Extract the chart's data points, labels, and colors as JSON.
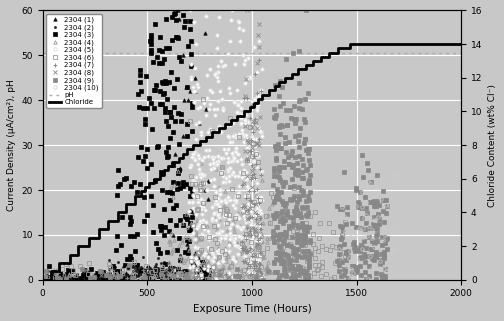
{
  "xlabel": "Exposure Time (Hours)",
  "ylabel_left": "Current Density (μA/cm²), pH",
  "ylabel_right": "Chloride Content (wt% Cl⁻)",
  "xlim": [
    0,
    2000
  ],
  "ylim_left": [
    0,
    60
  ],
  "ylim_right": [
    0,
    16
  ],
  "xticks": [
    0,
    500,
    1000,
    1500,
    2000
  ],
  "yticks_left": [
    0,
    10,
    20,
    30,
    40,
    50,
    60
  ],
  "yticks_right": [
    0,
    2,
    4,
    6,
    8,
    10,
    12,
    14,
    16
  ],
  "bg_color": "#c8c8c8",
  "grid_color": "#ffffff",
  "legend_entries": [
    "2304 (1)",
    "2304 (2)",
    "2304 (3)",
    "2304 (4)",
    "2304 (5)",
    "2304 (6)",
    "2304 (7)",
    "2304 (8)",
    "2304 (9)",
    "2304 (10)",
    "pH",
    "Chloride"
  ],
  "chloride_steps": [
    [
      0,
      0.0
    ],
    [
      40,
      0.5
    ],
    [
      80,
      1.0
    ],
    [
      130,
      1.5
    ],
    [
      170,
      2.0
    ],
    [
      220,
      2.5
    ],
    [
      270,
      3.0
    ],
    [
      310,
      3.5
    ],
    [
      360,
      4.0
    ],
    [
      400,
      4.5
    ],
    [
      440,
      5.0
    ],
    [
      470,
      5.25
    ],
    [
      490,
      5.5
    ],
    [
      510,
      5.75
    ],
    [
      530,
      6.0
    ],
    [
      560,
      6.25
    ],
    [
      580,
      6.5
    ],
    [
      600,
      6.75
    ],
    [
      620,
      7.0
    ],
    [
      650,
      7.25
    ],
    [
      670,
      7.5
    ],
    [
      690,
      7.75
    ],
    [
      720,
      8.0
    ],
    [
      750,
      8.25
    ],
    [
      780,
      8.5
    ],
    [
      810,
      8.75
    ],
    [
      840,
      9.0
    ],
    [
      870,
      9.25
    ],
    [
      900,
      9.5
    ],
    [
      930,
      9.75
    ],
    [
      960,
      10.0
    ],
    [
      990,
      10.25
    ],
    [
      1010,
      10.5
    ],
    [
      1030,
      10.75
    ],
    [
      1050,
      11.0
    ],
    [
      1080,
      11.25
    ],
    [
      1110,
      11.5
    ],
    [
      1130,
      11.75
    ],
    [
      1160,
      12.0
    ],
    [
      1190,
      12.25
    ],
    [
      1220,
      12.5
    ],
    [
      1260,
      12.75
    ],
    [
      1290,
      13.0
    ],
    [
      1330,
      13.25
    ],
    [
      1370,
      13.5
    ],
    [
      1410,
      13.75
    ],
    [
      1470,
      14.0
    ],
    [
      1540,
      14.0
    ],
    [
      1900,
      14.0
    ],
    [
      2000,
      14.0
    ]
  ],
  "ph_level_scaled": 13.5,
  "ph_color": "#aaaaaa",
  "chloride_color": "#000000"
}
